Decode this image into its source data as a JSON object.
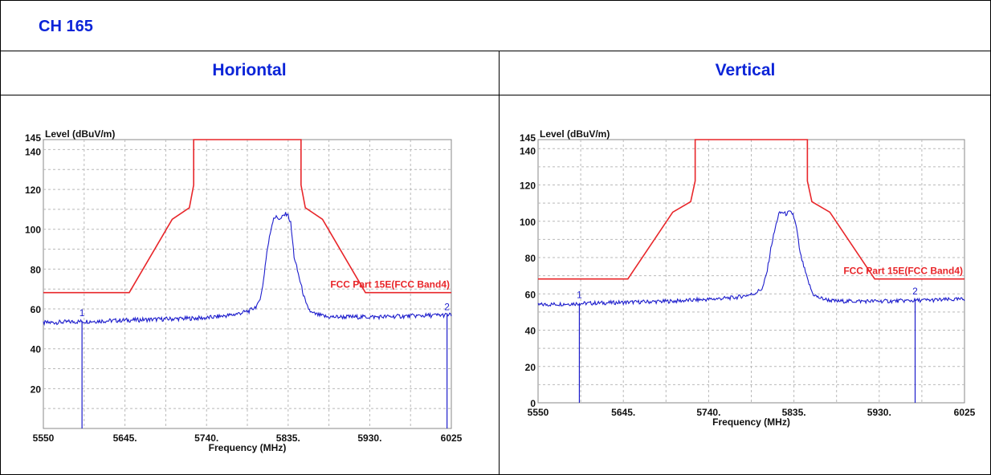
{
  "header": {
    "channel_label": "CH 165"
  },
  "columns": {
    "left_title": "Horiontal",
    "right_title": "Vertical"
  },
  "chart_data": [
    {
      "type": "line",
      "panel": "Horiontal",
      "ylabel": "Level (dBuV/m)",
      "xlabel": "Frequency (MHz)",
      "xlim": [
        5550,
        6025
      ],
      "ylim": [
        0,
        145
      ],
      "x_ticks": [
        "5550",
        "5645.",
        "5740.",
        "5835.",
        "5930.",
        "6025"
      ],
      "x_tick_values": [
        5550,
        5645,
        5740,
        5835,
        5930,
        6025
      ],
      "y_ticks": [
        "20",
        "40",
        "60",
        "80",
        "100",
        "120",
        "140",
        "145"
      ],
      "y_tick_values": [
        20,
        40,
        60,
        80,
        100,
        120,
        140,
        145
      ],
      "grid": true,
      "limit_line": {
        "name": "FCC Part 15E(FCC Band4)",
        "color": "#e8262a",
        "x": [
          5550,
          5650,
          5700,
          5720,
          5725,
          5725,
          5850,
          5850,
          5855,
          5875,
          5925,
          6025
        ],
        "y": [
          68.2,
          68.2,
          105,
          110.8,
          122.2,
          145,
          145,
          122.2,
          110.8,
          105,
          68.2,
          68.2
        ]
      },
      "series": [
        {
          "color": "#1d1dcc",
          "x": [
            5550,
            5580,
            5620,
            5660,
            5700,
            5740,
            5770,
            5790,
            5800,
            5805,
            5810,
            5815,
            5818,
            5822,
            5826,
            5830,
            5834,
            5838,
            5842,
            5846,
            5850,
            5856,
            5862,
            5870,
            5880,
            5900,
            5940,
            5980,
            6025
          ],
          "y": [
            53,
            53.5,
            54,
            54.5,
            55,
            55.5,
            57,
            59,
            62,
            70,
            88,
            100,
            106,
            106,
            105,
            107,
            108,
            103,
            86,
            79,
            72,
            62,
            58,
            57,
            56,
            56,
            56,
            56.5,
            57
          ]
        }
      ],
      "markers": [
        {
          "label": "1",
          "x": 5595,
          "y": 54
        },
        {
          "label": "2",
          "x": 6020,
          "y": 57
        }
      ]
    },
    {
      "type": "line",
      "panel": "Vertical",
      "ylabel": "Level (dBuV/m)",
      "xlabel": "Frequency (MHz)",
      "xlim": [
        5550,
        6025
      ],
      "ylim": [
        0,
        145
      ],
      "x_ticks": [
        "5550",
        "5645.",
        "5740.",
        "5835.",
        "5930.",
        "6025"
      ],
      "x_tick_values": [
        5550,
        5645,
        5740,
        5835,
        5930,
        6025
      ],
      "y_ticks": [
        "0",
        "20",
        "40",
        "60",
        "80",
        "100",
        "120",
        "140",
        "145"
      ],
      "y_tick_values": [
        0,
        20,
        40,
        60,
        80,
        100,
        120,
        140,
        145
      ],
      "grid": true,
      "limit_line": {
        "name": "FCC Part 15E(FCC Band4)",
        "color": "#e8262a",
        "x": [
          5550,
          5650,
          5700,
          5720,
          5725,
          5725,
          5850,
          5850,
          5855,
          5875,
          5925,
          6025
        ],
        "y": [
          68.2,
          68.2,
          105,
          110.8,
          122.2,
          145,
          145,
          122.2,
          110.8,
          105,
          68.2,
          68.2
        ]
      },
      "series": [
        {
          "color": "#1d1dcc",
          "x": [
            5550,
            5580,
            5620,
            5660,
            5700,
            5740,
            5770,
            5790,
            5800,
            5805,
            5810,
            5815,
            5818,
            5822,
            5826,
            5830,
            5834,
            5838,
            5842,
            5846,
            5850,
            5856,
            5862,
            5870,
            5880,
            5900,
            5940,
            5980,
            6025
          ],
          "y": [
            54,
            54.5,
            55,
            55.5,
            56,
            57,
            58,
            60,
            63,
            72,
            87,
            98,
            104,
            105,
            104,
            105,
            104,
            96,
            82,
            75,
            68,
            60,
            58,
            57,
            56,
            56,
            56,
            56.5,
            57
          ]
        }
      ],
      "markers": [
        {
          "label": "1",
          "x": 5596,
          "y": 55
        },
        {
          "label": "2",
          "x": 5970,
          "y": 57
        }
      ]
    }
  ]
}
